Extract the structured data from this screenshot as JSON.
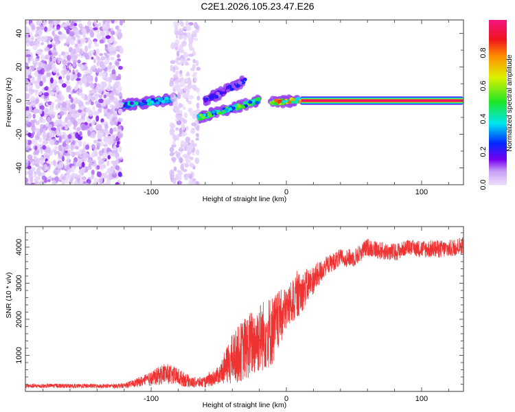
{
  "chart_data": [
    {
      "type": "heatmap",
      "title": "C2E1.2026.105.23.47.E26",
      "xlabel": "Height of straight line (km)",
      "ylabel": "Frequency (Hz)",
      "xlim": [
        -193,
        131
      ],
      "ylim": [
        -50,
        48
      ],
      "xticks": [
        -100,
        0,
        100
      ],
      "yticks": [
        -40,
        -20,
        0,
        20,
        40
      ],
      "colorbar": {
        "label": "Normalized spectral amplitude",
        "range": [
          0,
          1
        ],
        "ticks": [
          "0.0",
          "0.2",
          "0.4",
          "0.6",
          "0.8"
        ]
      },
      "features": [
        {
          "name": "carrier",
          "x": [
            10,
            130
          ],
          "freq": [
            0,
            0
          ],
          "amplitude": 0.95
        },
        {
          "name": "carrier-onset",
          "x": [
            -12,
            10
          ],
          "freq": [
            -1,
            0
          ],
          "amplitude": 0.7
        },
        {
          "name": "track-a",
          "x": [
            -123,
            -82
          ],
          "freq": [
            -3,
            1
          ],
          "amplitude": 0.35
        },
        {
          "name": "track-b",
          "x": [
            -65,
            -20
          ],
          "freq": [
            -10,
            0
          ],
          "amplitude": 0.45
        },
        {
          "name": "track-c",
          "x": [
            -60,
            -30
          ],
          "freq": [
            0,
            12
          ],
          "amplitude": 0.2
        },
        {
          "name": "noise-wide",
          "x": [
            -193,
            -122
          ],
          "freq": [
            -50,
            48
          ],
          "amplitude": 0.1
        },
        {
          "name": "noise-sparse",
          "x": [
            -85,
            -65
          ],
          "freq": [
            -50,
            48
          ],
          "amplitude": 0.06
        }
      ]
    },
    {
      "type": "line",
      "xlabel": "Height of straight line (km)",
      "ylabel": "SNR (10 * v/v)",
      "xlim": [
        -193,
        131
      ],
      "ylim": [
        0,
        4570
      ],
      "xticks": [
        -100,
        0,
        100
      ],
      "yticks": [
        1000,
        2000,
        3000,
        4000
      ],
      "color": "#ee3333",
      "series": [
        {
          "name": "SNR",
          "x": [
            -190,
            -180,
            -170,
            -160,
            -150,
            -140,
            -130,
            -120,
            -110,
            -100,
            -90,
            -80,
            -70,
            -60,
            -50,
            -40,
            -30,
            -20,
            -10,
            0,
            10,
            20,
            30,
            40,
            50,
            60,
            70,
            80,
            90,
            100,
            110,
            120,
            130
          ],
          "y": [
            150,
            150,
            160,
            150,
            150,
            150,
            150,
            160,
            250,
            350,
            500,
            400,
            250,
            250,
            450,
            900,
            1200,
            1500,
            1700,
            2300,
            2700,
            3100,
            3500,
            3700,
            3700,
            4000,
            3900,
            3850,
            4000,
            3950,
            3950,
            3950,
            4050
          ],
          "noise": [
            60,
            60,
            60,
            60,
            60,
            60,
            60,
            70,
            120,
            200,
            300,
            250,
            150,
            150,
            250,
            700,
            900,
            1000,
            1000,
            600,
            600,
            400,
            250,
            250,
            250,
            250,
            250,
            250,
            200,
            250,
            250,
            250,
            250
          ]
        }
      ]
    }
  ]
}
